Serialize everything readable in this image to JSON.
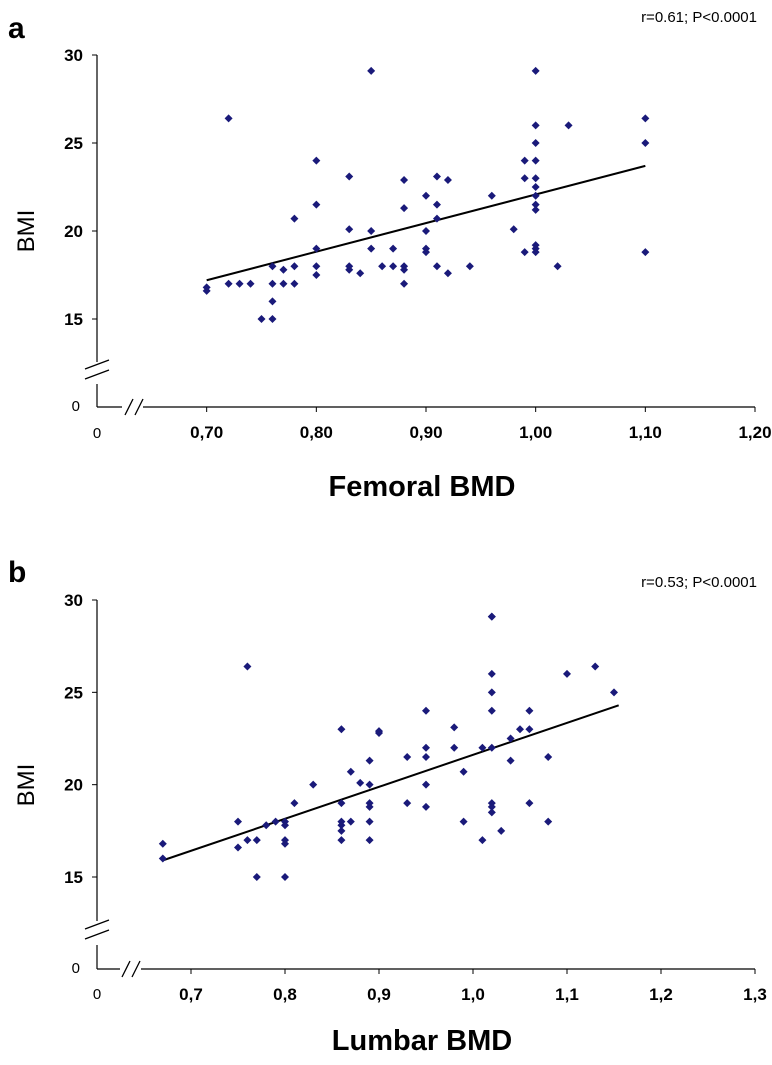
{
  "chart_data": [
    {
      "type": "scatter",
      "panel_label": "a",
      "annotation": "r=0.61; P<0.0001",
      "xlabel": "Femoral BMD",
      "ylabel": "BMI",
      "zero_x_label": "0",
      "zero_y_label": "0",
      "xlim": [
        0.6,
        1.2
      ],
      "ylim": [
        15,
        30
      ],
      "x_tick_values": [
        0.7,
        0.8,
        0.9,
        1.0,
        1.1,
        1.2
      ],
      "x_tick_labels": [
        "0,70",
        "0,80",
        "0,90",
        "1,00",
        "1,10",
        "1,20"
      ],
      "y_tick_values": [
        15,
        20,
        25,
        30
      ],
      "y_tick_labels": [
        "15",
        "20",
        "25",
        "30"
      ],
      "point_color": "#1a1a7a",
      "trendline": {
        "x": [
          0.7,
          1.1
        ],
        "y": [
          17.2,
          23.7
        ]
      },
      "points": [
        [
          0.7,
          16.8
        ],
        [
          0.7,
          16.6
        ],
        [
          0.72,
          26.4
        ],
        [
          0.72,
          17.0
        ],
        [
          0.73,
          17.0
        ],
        [
          0.74,
          17.0
        ],
        [
          0.75,
          15.0
        ],
        [
          0.76,
          15.0
        ],
        [
          0.76,
          16.0
        ],
        [
          0.76,
          17.0
        ],
        [
          0.76,
          18.0
        ],
        [
          0.77,
          17.8
        ],
        [
          0.77,
          17.0
        ],
        [
          0.78,
          18.0
        ],
        [
          0.78,
          17.0
        ],
        [
          0.78,
          20.7
        ],
        [
          0.8,
          24.0
        ],
        [
          0.8,
          21.5
        ],
        [
          0.8,
          19.0
        ],
        [
          0.8,
          18.0
        ],
        [
          0.8,
          17.5
        ],
        [
          0.83,
          23.1
        ],
        [
          0.83,
          20.1
        ],
        [
          0.83,
          18.0
        ],
        [
          0.83,
          17.8
        ],
        [
          0.84,
          17.6
        ],
        [
          0.85,
          29.1
        ],
        [
          0.85,
          20.0
        ],
        [
          0.85,
          19.0
        ],
        [
          0.86,
          18.0
        ],
        [
          0.87,
          19.0
        ],
        [
          0.87,
          18.0
        ],
        [
          0.88,
          22.9
        ],
        [
          0.88,
          21.3
        ],
        [
          0.88,
          18.0
        ],
        [
          0.88,
          17.8
        ],
        [
          0.88,
          17.0
        ],
        [
          0.9,
          22.0
        ],
        [
          0.9,
          20.0
        ],
        [
          0.9,
          19.0
        ],
        [
          0.9,
          18.8
        ],
        [
          0.91,
          23.1
        ],
        [
          0.91,
          21.5
        ],
        [
          0.91,
          20.7
        ],
        [
          0.91,
          18.0
        ],
        [
          0.92,
          22.9
        ],
        [
          0.92,
          17.6
        ],
        [
          0.94,
          18.0
        ],
        [
          0.96,
          22.0
        ],
        [
          0.98,
          20.1
        ],
        [
          0.99,
          24.0
        ],
        [
          0.99,
          23.0
        ],
        [
          0.99,
          18.8
        ],
        [
          1.0,
          29.1
        ],
        [
          1.0,
          26.0
        ],
        [
          1.0,
          25.0
        ],
        [
          1.0,
          24.0
        ],
        [
          1.0,
          23.0
        ],
        [
          1.0,
          22.5
        ],
        [
          1.0,
          22.0
        ],
        [
          1.0,
          21.5
        ],
        [
          1.0,
          21.2
        ],
        [
          1.0,
          19.2
        ],
        [
          1.0,
          19.0
        ],
        [
          1.0,
          18.8
        ],
        [
          1.02,
          18.0
        ],
        [
          1.03,
          26.0
        ],
        [
          1.1,
          26.4
        ],
        [
          1.1,
          25.0
        ],
        [
          1.1,
          18.8
        ]
      ]
    },
    {
      "type": "scatter",
      "panel_label": "b",
      "annotation": "r=0.53; P<0.0001",
      "xlabel": "Lumbar BMD",
      "ylabel": "BMI",
      "zero_x_label": "0",
      "zero_y_label": "0",
      "xlim": [
        0.6,
        1.3
      ],
      "ylim": [
        15,
        30
      ],
      "x_tick_values": [
        0.7,
        0.8,
        0.9,
        1.0,
        1.1,
        1.2,
        1.3
      ],
      "x_tick_labels": [
        "0,7",
        "0,8",
        "0,9",
        "1,0",
        "1,1",
        "1,2",
        "1,3"
      ],
      "y_tick_values": [
        15,
        20,
        25,
        30
      ],
      "y_tick_labels": [
        "15",
        "20",
        "25",
        "30"
      ],
      "point_color": "#1a1a7a",
      "trendline": {
        "x": [
          0.67,
          1.155
        ],
        "y": [
          15.9,
          24.3
        ]
      },
      "points": [
        [
          0.67,
          16.8
        ],
        [
          0.67,
          16.0
        ],
        [
          0.75,
          18.0
        ],
        [
          0.75,
          16.6
        ],
        [
          0.76,
          26.4
        ],
        [
          0.76,
          17.0
        ],
        [
          0.77,
          17.0
        ],
        [
          0.77,
          15.0
        ],
        [
          0.78,
          17.8
        ],
        [
          0.79,
          18.0
        ],
        [
          0.8,
          18.0
        ],
        [
          0.8,
          17.8
        ],
        [
          0.8,
          17.0
        ],
        [
          0.8,
          16.8
        ],
        [
          0.8,
          15.0
        ],
        [
          0.81,
          19.0
        ],
        [
          0.83,
          20.0
        ],
        [
          0.86,
          23.0
        ],
        [
          0.86,
          19.0
        ],
        [
          0.86,
          18.0
        ],
        [
          0.86,
          17.8
        ],
        [
          0.86,
          17.5
        ],
        [
          0.86,
          17.0
        ],
        [
          0.87,
          20.7
        ],
        [
          0.87,
          18.0
        ],
        [
          0.88,
          20.1
        ],
        [
          0.89,
          21.3
        ],
        [
          0.89,
          20.0
        ],
        [
          0.89,
          19.0
        ],
        [
          0.89,
          18.8
        ],
        [
          0.89,
          18.0
        ],
        [
          0.89,
          17.0
        ],
        [
          0.9,
          22.9
        ],
        [
          0.9,
          22.8
        ],
        [
          0.93,
          21.5
        ],
        [
          0.93,
          19.0
        ],
        [
          0.95,
          24.0
        ],
        [
          0.95,
          22.0
        ],
        [
          0.95,
          21.5
        ],
        [
          0.95,
          20.0
        ],
        [
          0.95,
          18.8
        ],
        [
          0.98,
          23.1
        ],
        [
          0.98,
          22.0
        ],
        [
          0.99,
          20.7
        ],
        [
          0.99,
          18.0
        ],
        [
          1.01,
          22.0
        ],
        [
          1.01,
          17.0
        ],
        [
          1.02,
          29.1
        ],
        [
          1.02,
          29.1
        ],
        [
          1.02,
          26.0
        ],
        [
          1.02,
          25.0
        ],
        [
          1.02,
          24.0
        ],
        [
          1.02,
          22.0
        ],
        [
          1.02,
          19.0
        ],
        [
          1.02,
          18.8
        ],
        [
          1.02,
          18.5
        ],
        [
          1.03,
          17.5
        ],
        [
          1.04,
          22.5
        ],
        [
          1.04,
          21.3
        ],
        [
          1.05,
          23.0
        ],
        [
          1.06,
          24.0
        ],
        [
          1.06,
          23.0
        ],
        [
          1.06,
          19.0
        ],
        [
          1.08,
          21.5
        ],
        [
          1.08,
          18.0
        ],
        [
          1.1,
          26.0
        ],
        [
          1.13,
          26.4
        ],
        [
          1.15,
          25.0
        ]
      ]
    }
  ]
}
